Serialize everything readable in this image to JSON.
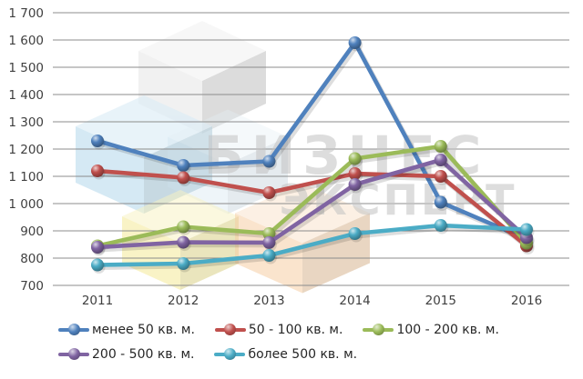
{
  "watermark": {
    "line1": "БИЗНЕС",
    "line2": "ЭКСПЕРТ"
  },
  "chart_data": {
    "type": "line",
    "title": "",
    "xlabel": "",
    "ylabel": "",
    "categories": [
      "2011",
      "2012",
      "2013",
      "2014",
      "2015",
      "2016"
    ],
    "series": [
      {
        "name": "менее 50 кв. м.",
        "color": "#4F81BD",
        "values": [
          1230,
          1140,
          1155,
          1590,
          1005,
          870
        ]
      },
      {
        "name": "50 - 100 кв. м.",
        "color": "#C0504D",
        "values": [
          1120,
          1095,
          1040,
          1110,
          1100,
          845
        ]
      },
      {
        "name": "100 - 200 кв. м.",
        "color": "#9BBB59",
        "values": [
          845,
          915,
          890,
          1165,
          1210,
          855
        ]
      },
      {
        "name": "200 - 500 кв. м.",
        "color": "#8064A2",
        "values": [
          840,
          858,
          857,
          1070,
          1160,
          875
        ]
      },
      {
        "name": "более 500 кв. м.",
        "color": "#4BACC6",
        "values": [
          775,
          780,
          810,
          890,
          920,
          905
        ]
      }
    ],
    "ylim": [
      700,
      1700
    ],
    "ytick_step": 100,
    "yticks": [
      700,
      800,
      900,
      1000,
      1100,
      1200,
      1300,
      1400,
      1500,
      1600,
      1700
    ],
    "grid": true,
    "gridline_color": "#8c8c8c",
    "tick_label_color": "#3f3f3f",
    "legend_position": "bottom-left",
    "legend_rows": [
      [
        0,
        1,
        2
      ],
      [
        3,
        4
      ]
    ]
  }
}
